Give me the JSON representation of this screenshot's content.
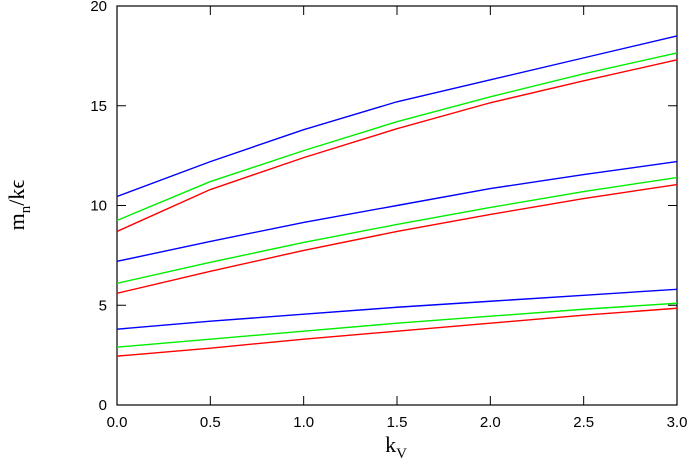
{
  "chart_data": {
    "type": "line",
    "xlabel": {
      "main": "k",
      "subscript": "V"
    },
    "ylabel": {
      "main": "m",
      "subscript": "n",
      "rest": "/kϵ"
    },
    "x": [
      0,
      0.5,
      1,
      1.5,
      2,
      2.5,
      3
    ],
    "series": [
      {
        "color": "#0000ff",
        "values": [
          10.45,
          12.2,
          13.8,
          15.2,
          16.3,
          17.4,
          18.5
        ]
      },
      {
        "color": "#00ee00",
        "values": [
          9.25,
          11.2,
          12.75,
          14.2,
          15.45,
          16.6,
          17.65
        ]
      },
      {
        "color": "#ff0000",
        "values": [
          8.7,
          10.8,
          12.4,
          13.85,
          15.15,
          16.25,
          17.3
        ]
      },
      {
        "color": "#0000ff",
        "values": [
          7.2,
          8.2,
          9.15,
          10.0,
          10.85,
          11.55,
          12.2
        ]
      },
      {
        "color": "#00ee00",
        "values": [
          6.1,
          7.15,
          8.15,
          9.05,
          9.9,
          10.7,
          11.4
        ]
      },
      {
        "color": "#ff0000",
        "values": [
          5.6,
          6.7,
          7.75,
          8.7,
          9.55,
          10.35,
          11.05
        ]
      },
      {
        "color": "#0000ff",
        "values": [
          3.8,
          4.2,
          4.55,
          4.9,
          5.2,
          5.5,
          5.8
        ]
      },
      {
        "color": "#00ee00",
        "values": [
          2.9,
          3.3,
          3.7,
          4.1,
          4.45,
          4.8,
          5.1
        ]
      },
      {
        "color": "#ff0000",
        "values": [
          2.45,
          2.85,
          3.3,
          3.7,
          4.1,
          4.5,
          4.85
        ]
      }
    ],
    "xlim": [
      0,
      3
    ],
    "xticks": [
      {
        "value": 0,
        "label": "0.0"
      },
      0.5,
      {
        "value": 1,
        "label": "1.0"
      },
      1.5,
      {
        "value": 2,
        "label": "2.0"
      },
      2.5,
      {
        "value": 3,
        "label": "3.0"
      }
    ],
    "ylim": [
      0,
      20
    ],
    "yticks": [
      0,
      5,
      10,
      15,
      20
    ]
  }
}
